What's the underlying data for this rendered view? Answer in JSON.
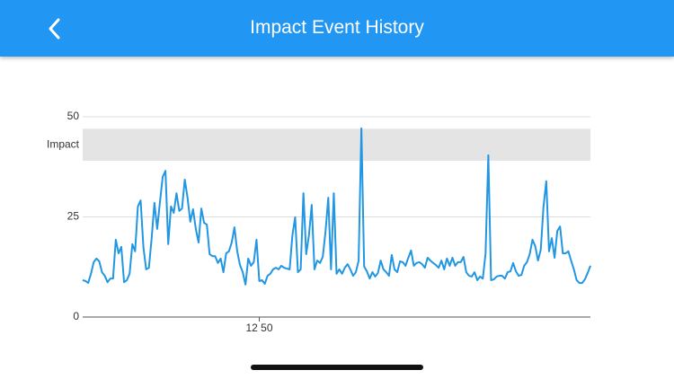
{
  "header": {
    "title": "Impact Event History"
  },
  "chart_data": {
    "type": "line",
    "x": [
      0,
      1,
      2,
      3,
      4,
      5,
      6,
      7,
      8,
      9,
      10,
      11,
      12,
      13,
      14,
      15,
      16,
      17,
      18,
      19,
      20,
      21,
      22,
      23,
      24,
      25,
      26,
      27,
      28,
      29,
      30,
      31,
      32,
      33,
      34,
      35,
      36,
      37,
      38,
      39,
      40,
      41,
      42,
      43,
      44,
      45,
      46,
      47,
      48,
      49,
      50,
      51,
      52,
      53,
      54,
      55,
      56,
      57,
      58,
      59,
      60,
      61,
      62,
      63,
      64,
      65,
      66,
      67,
      68,
      69,
      70,
      71,
      72,
      73,
      74,
      75,
      76,
      77,
      78,
      79,
      80,
      81,
      82,
      83,
      84,
      85,
      86,
      87,
      88,
      89,
      90,
      91,
      92,
      93,
      94,
      95,
      96,
      97,
      98,
      99,
      100,
      101,
      102,
      103,
      104,
      105,
      106,
      107,
      108,
      109,
      110,
      111,
      112,
      113,
      114,
      115,
      116,
      117,
      118,
      119,
      120,
      121,
      122,
      123,
      124,
      125,
      126,
      127,
      128,
      129,
      130,
      131,
      132,
      133,
      134,
      135,
      136,
      137,
      138,
      139,
      140,
      141,
      142,
      143,
      144,
      145,
      146,
      147,
      148,
      149,
      150,
      151,
      152,
      153,
      154,
      155,
      156,
      157,
      158,
      159,
      160,
      161,
      162,
      163,
      164,
      165,
      166,
      167,
      168,
      169,
      170,
      171,
      172,
      173,
      174,
      175,
      176,
      177,
      178,
      179,
      180,
      181,
      182,
      183,
      184
    ],
    "series": [
      {
        "color": "#2196e3",
        "values": [
          9.2,
          9.0,
          8.5,
          10.8,
          13.7,
          14.6,
          13.9,
          11.2,
          10.3,
          8.7,
          9.6,
          9.6,
          19.3,
          15.9,
          17.5,
          8.7,
          9.2,
          10.8,
          18.2,
          16.4,
          27.6,
          29.1,
          17.5,
          11.9,
          12.3,
          19.7,
          28.5,
          22.0,
          28.7,
          35.0,
          36.5,
          18.2,
          27.6,
          26.0,
          30.9,
          26.5,
          27.1,
          34.3,
          29.8,
          23.8,
          26.9,
          22.0,
          18.6,
          27.1,
          23.5,
          23.1,
          15.7,
          15.2,
          15.2,
          13.5,
          14.6,
          11.2,
          15.9,
          16.4,
          18.6,
          22.4,
          16.4,
          13.0,
          11.2,
          8.1,
          14.6,
          12.8,
          13.7,
          19.3,
          9.0,
          9.2,
          8.3,
          10.3,
          10.8,
          11.9,
          12.3,
          11.9,
          12.8,
          12.3,
          12.1,
          11.9,
          20.4,
          24.9,
          11.2,
          11.9,
          30.9,
          15.7,
          20.4,
          28.0,
          11.9,
          14.1,
          13.5,
          15.0,
          21.3,
          29.8,
          11.9,
          30.9,
          10.8,
          11.9,
          10.8,
          12.3,
          13.2,
          11.9,
          10.3,
          11.2,
          14.1,
          47.1,
          12.6,
          11.4,
          9.6,
          11.2,
          10.1,
          11.0,
          14.1,
          11.9,
          11.2,
          10.3,
          15.5,
          11.9,
          11.2,
          13.9,
          13.7,
          12.8,
          14.8,
          16.6,
          12.8,
          13.5,
          13.7,
          13.2,
          12.3,
          14.8,
          14.1,
          13.5,
          13.0,
          12.3,
          14.1,
          11.9,
          14.6,
          12.8,
          14.8,
          12.8,
          13.7,
          13.7,
          15.0,
          11.2,
          10.3,
          10.1,
          11.2,
          9.2,
          10.1,
          9.6,
          15.9,
          40.4,
          9.2,
          9.4,
          10.1,
          10.3,
          10.3,
          9.6,
          11.2,
          11.4,
          13.5,
          11.4,
          10.3,
          10.5,
          12.8,
          13.7,
          15.7,
          19.3,
          17.7,
          14.1,
          16.8,
          27.6,
          33.9,
          16.4,
          19.7,
          14.8,
          21.5,
          22.6,
          15.9,
          15.9,
          16.4,
          14.1,
          11.9,
          9.2,
          8.5,
          8.5,
          9.4,
          11.0,
          12.8
        ]
      }
    ],
    "xlim": [
      0,
      184
    ],
    "xticks": [
      {
        "value": 64,
        "label": "12 50"
      }
    ],
    "ylim": [
      0,
      50
    ],
    "yticks": [
      0,
      25,
      50
    ],
    "grid": true,
    "band": {
      "label": "Impact",
      "range": [
        39,
        47
      ]
    }
  }
}
